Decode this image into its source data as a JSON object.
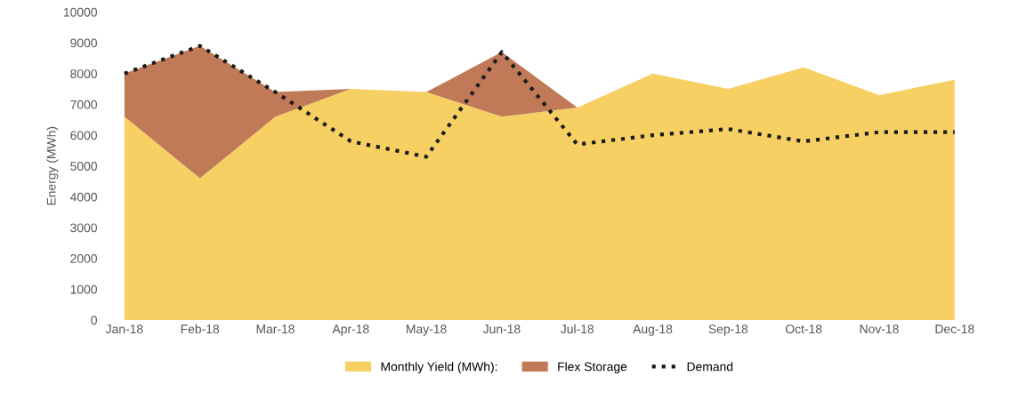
{
  "chart_data": {
    "type": "area",
    "stacked": true,
    "ylabel": "Energy (MWh)",
    "categories": [
      "Jan-18",
      "Feb-18",
      "Mar-18",
      "Apr-18",
      "May-18",
      "Jun-18",
      "Jul-18",
      "Aug-18",
      "Sep-18",
      "Oct-18",
      "Nov-18",
      "Dec-18"
    ],
    "series": [
      {
        "name": "Monthly Yield (MWh):",
        "color": "#f7d064",
        "values": [
          6600,
          4600,
          6600,
          7500,
          7400,
          6600,
          6900,
          8000,
          7500,
          8200,
          7300,
          7800
        ]
      },
      {
        "name": "Flex Storage",
        "color": "#c07a57",
        "values": [
          1400,
          4300,
          800,
          0,
          0,
          2100,
          0,
          0,
          0,
          0,
          0,
          0
        ]
      },
      {
        "name": "Demand",
        "type": "line",
        "color": "#1a1a1a",
        "line_style": "dotted",
        "values": [
          8000,
          8900,
          7400,
          5800,
          5300,
          8700,
          5700,
          6000,
          6200,
          5800,
          6100,
          6100
        ]
      }
    ],
    "ylim": [
      0,
      10000
    ],
    "yticks": [
      0,
      1000,
      2000,
      3000,
      4000,
      5000,
      6000,
      7000,
      8000,
      9000,
      10000
    ],
    "grid": false,
    "legend": "bottom"
  }
}
